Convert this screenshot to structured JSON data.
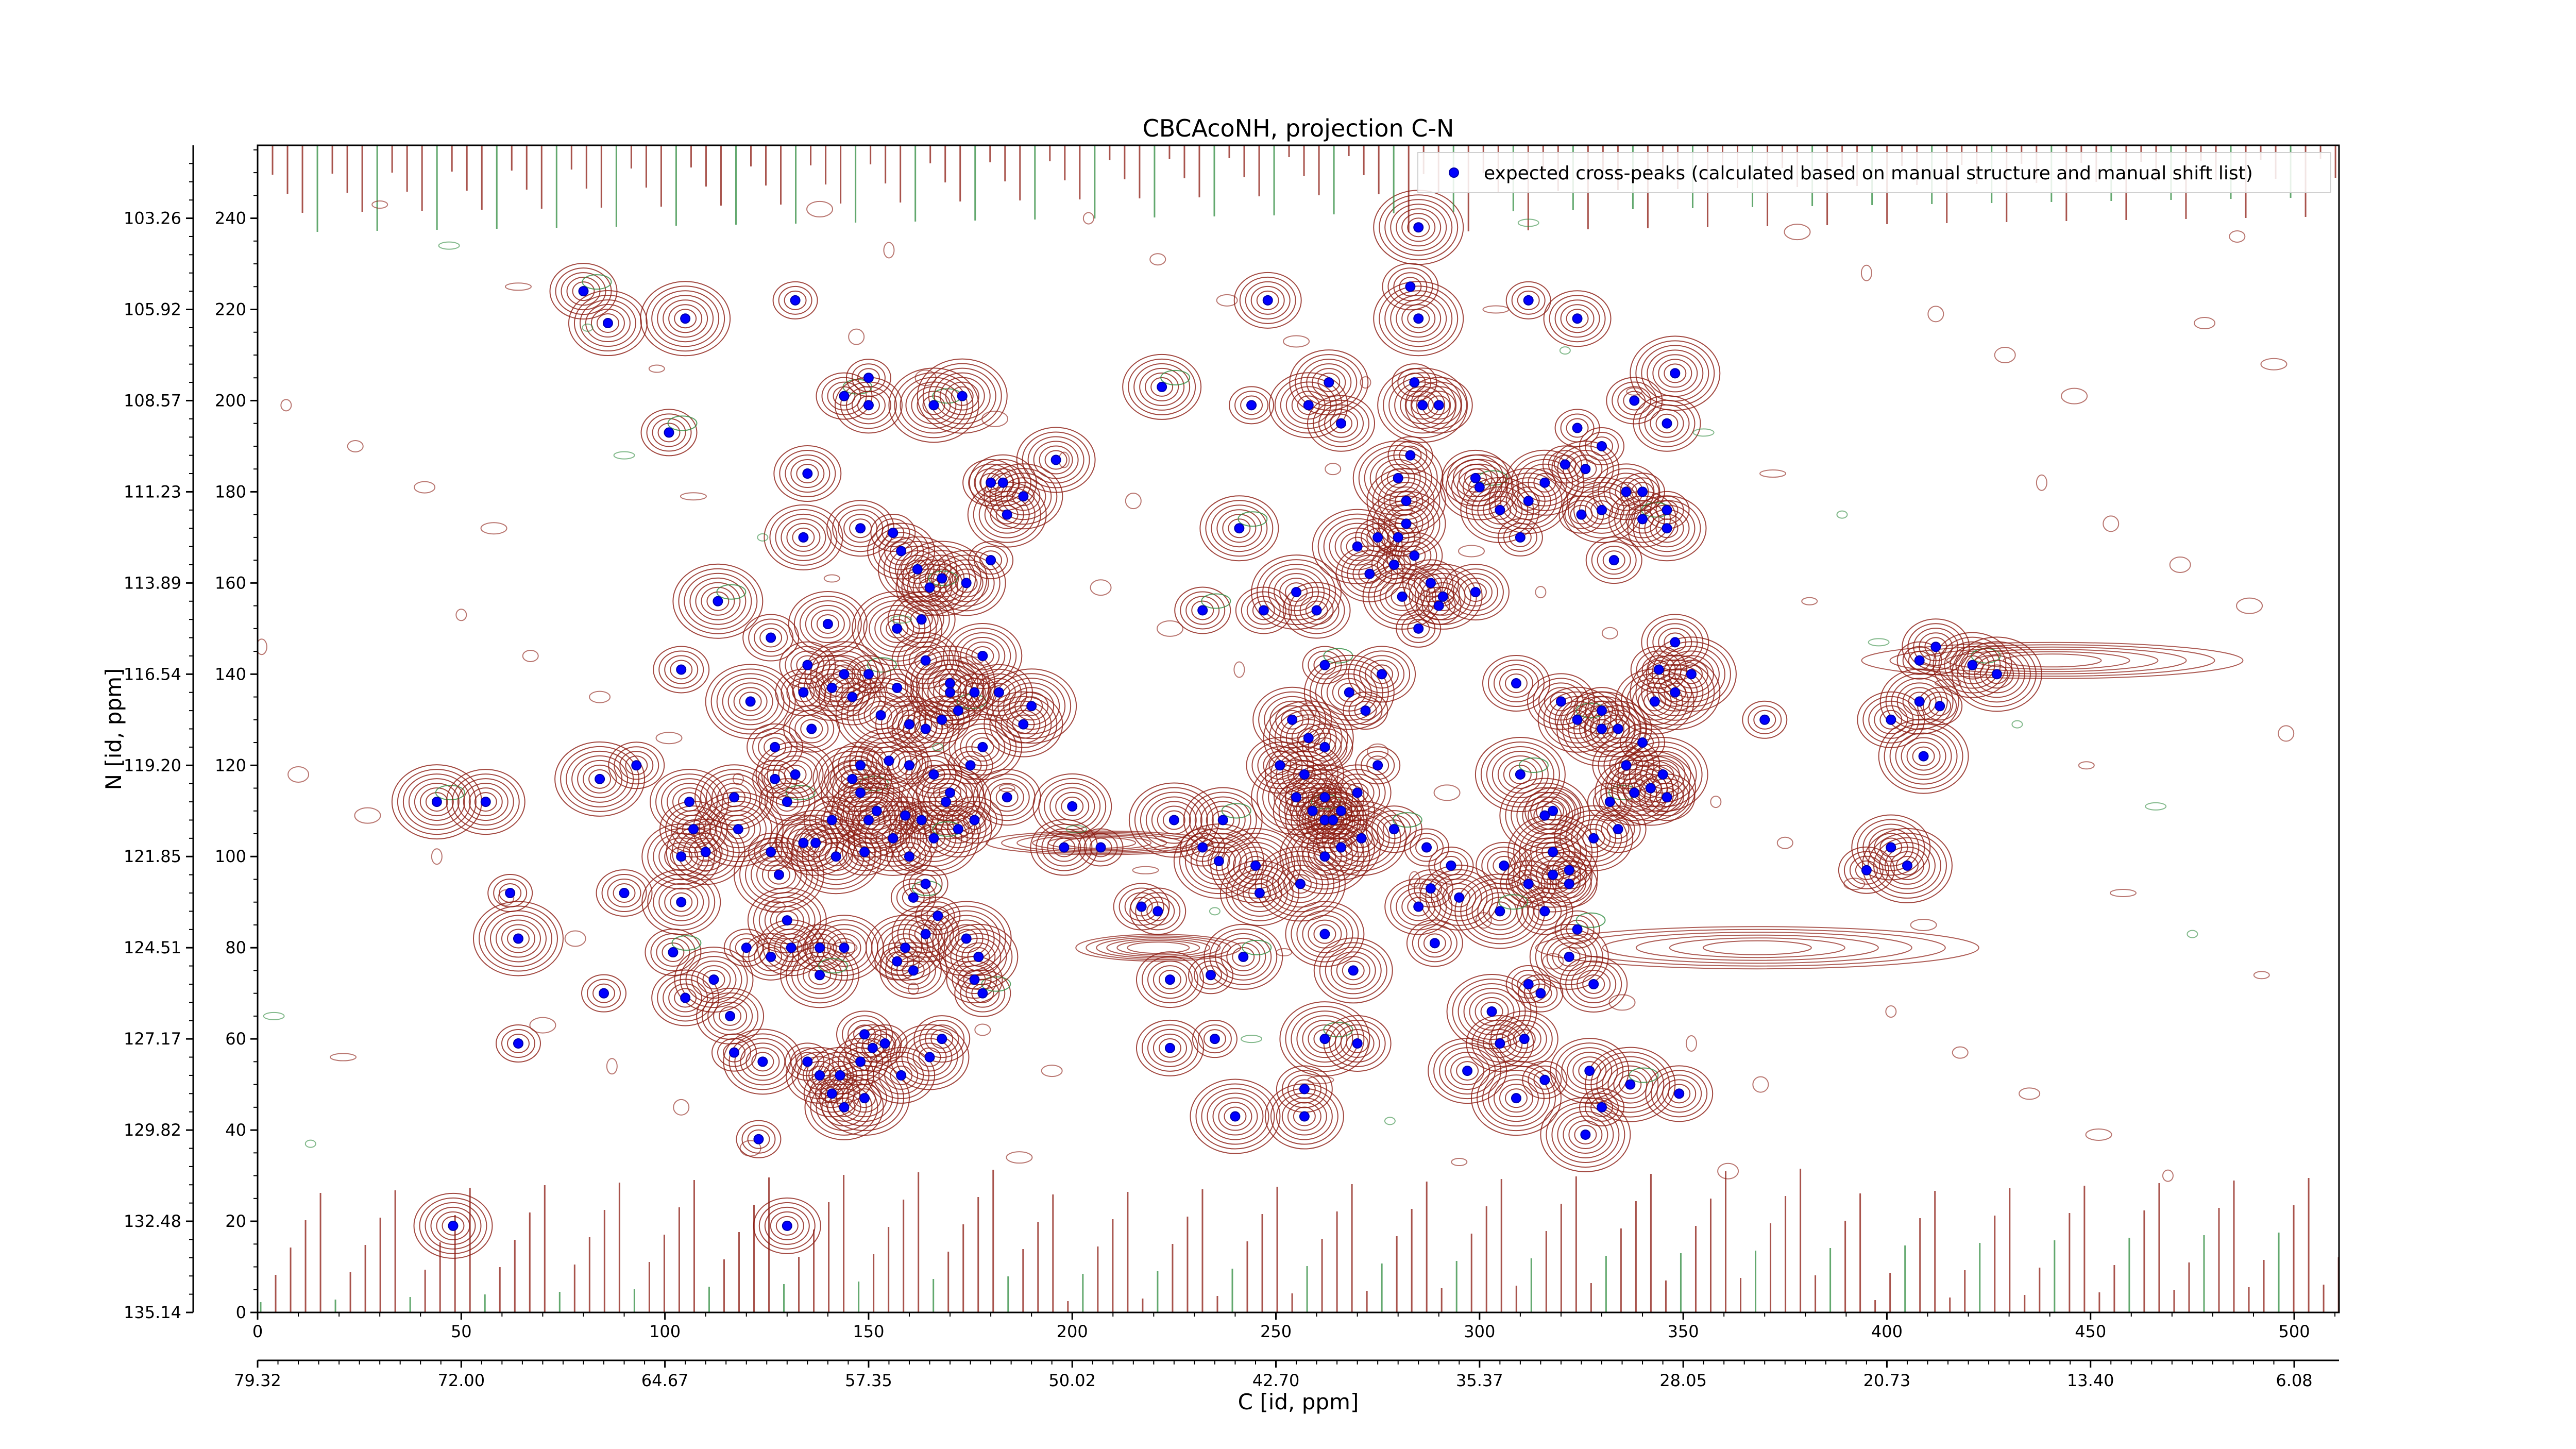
{
  "chart_data": {
    "type": "scatter",
    "title": "CBCAcoNH, projection C-N",
    "xlabel": "C [id, ppm]",
    "ylabel": "N [id, ppm]",
    "x_index_ticks": [
      "0",
      "50",
      "100",
      "150",
      "200",
      "250",
      "300",
      "350",
      "400",
      "450",
      "500"
    ],
    "x_ppm_ticks": [
      "79.32",
      "72.00",
      "64.67",
      "57.35",
      "50.02",
      "42.70",
      "35.37",
      "28.05",
      "20.73",
      "13.40",
      "6.08"
    ],
    "y_index_ticks": [
      "0",
      "20",
      "40",
      "60",
      "80",
      "100",
      "120",
      "140",
      "160",
      "180",
      "200",
      "220",
      "240"
    ],
    "y_ppm_ticks": [
      "135.14",
      "132.48",
      "129.82",
      "127.17",
      "124.51",
      "121.85",
      "119.20",
      "116.54",
      "113.89",
      "111.23",
      "108.57",
      "105.92",
      "103.26"
    ],
    "xlim": [
      0,
      511
    ],
    "ylim": [
      0,
      256
    ],
    "legend": {
      "label": "expected cross-peaks (calculated based on manual structure and manual shift list)",
      "placement": "upper right",
      "marker_color": "#0000ff"
    },
    "contour_colors": {
      "positive": "#8b1a10",
      "negative": "#2e8b3e"
    },
    "series": [
      {
        "name": "expected cross-peaks (calculated based on manual structure and manual shift list)",
        "color": "#0000ff",
        "points": [
          [
            80,
            224
          ],
          [
            86,
            217
          ],
          [
            105,
            218
          ],
          [
            132,
            222
          ],
          [
            248,
            222
          ],
          [
            312,
            222
          ],
          [
            324,
            218
          ],
          [
            283,
            225
          ],
          [
            285,
            218
          ],
          [
            44,
            112
          ],
          [
            56,
            112
          ],
          [
            62,
            92
          ],
          [
            64,
            82
          ],
          [
            64,
            59
          ],
          [
            85,
            70
          ],
          [
            90,
            92
          ],
          [
            93,
            120
          ],
          [
            84,
            117
          ],
          [
            101,
            193
          ],
          [
            104,
            141
          ],
          [
            107,
            106
          ],
          [
            104,
            100
          ],
          [
            104,
            90
          ],
          [
            106,
            112
          ],
          [
            110,
            101
          ],
          [
            118,
            106
          ],
          [
            117,
            113
          ],
          [
            102,
            79
          ],
          [
            105,
            69
          ],
          [
            112,
            73
          ],
          [
            120,
            80
          ],
          [
            126,
            78
          ],
          [
            116,
            65
          ],
          [
            117,
            57
          ],
          [
            124,
            55
          ],
          [
            123,
            38
          ],
          [
            113,
            156
          ],
          [
            126,
            148
          ],
          [
            121,
            134
          ],
          [
            135,
            142
          ],
          [
            140,
            151
          ],
          [
            134,
            136
          ],
          [
            136,
            128
          ],
          [
            127,
            124
          ],
          [
            127,
            117
          ],
          [
            130,
            112
          ],
          [
            132,
            118
          ],
          [
            134,
            103
          ],
          [
            126,
            101
          ],
          [
            128,
            96
          ],
          [
            130,
            86
          ],
          [
            131,
            80
          ],
          [
            138,
            80
          ],
          [
            144,
            80
          ],
          [
            138,
            74
          ],
          [
            135,
            55
          ],
          [
            138,
            52
          ],
          [
            141,
            48
          ],
          [
            144,
            45
          ],
          [
            149,
            47
          ],
          [
            149,
            61
          ],
          [
            151,
            58
          ],
          [
            154,
            59
          ],
          [
            144,
            201
          ],
          [
            150,
            205
          ],
          [
            150,
            199
          ],
          [
            135,
            184
          ],
          [
            134,
            170
          ],
          [
            148,
            172
          ],
          [
            156,
            171
          ],
          [
            158,
            167
          ],
          [
            162,
            163
          ],
          [
            165,
            159
          ],
          [
            168,
            161
          ],
          [
            157,
            150
          ],
          [
            163,
            152
          ],
          [
            174,
            160
          ],
          [
            180,
            165
          ],
          [
            178,
            144
          ],
          [
            170,
            138
          ],
          [
            164,
            143
          ],
          [
            150,
            140
          ],
          [
            146,
            135
          ],
          [
            141,
            137
          ],
          [
            144,
            140
          ],
          [
            153,
            131
          ],
          [
            157,
            137
          ],
          [
            160,
            129
          ],
          [
            164,
            128
          ],
          [
            168,
            130
          ],
          [
            172,
            132
          ],
          [
            176,
            136
          ],
          [
            182,
            136
          ],
          [
            188,
            129
          ],
          [
            160,
            120
          ],
          [
            166,
            118
          ],
          [
            170,
            114
          ],
          [
            175,
            120
          ],
          [
            178,
            124
          ],
          [
            148,
            114
          ],
          [
            150,
            108
          ],
          [
            152,
            110
          ],
          [
            156,
            104
          ],
          [
            159,
            109
          ],
          [
            163,
            108
          ],
          [
            169,
            112
          ],
          [
            172,
            106
          ],
          [
            176,
            108
          ],
          [
            166,
            104
          ],
          [
            160,
            100
          ],
          [
            149,
            101
          ],
          [
            142,
            100
          ],
          [
            137,
            103
          ],
          [
            141,
            108
          ],
          [
            146,
            117
          ],
          [
            148,
            120
          ],
          [
            155,
            121
          ],
          [
            161,
            91
          ],
          [
            164,
            94
          ],
          [
            167,
            87
          ],
          [
            164,
            83
          ],
          [
            159,
            80
          ],
          [
            157,
            77
          ],
          [
            161,
            75
          ],
          [
            174,
            82
          ],
          [
            176,
            73
          ],
          [
            178,
            70
          ],
          [
            177,
            78
          ],
          [
            168,
            60
          ],
          [
            165,
            56
          ],
          [
            158,
            52
          ],
          [
            148,
            55
          ],
          [
            143,
            52
          ],
          [
            130,
            19
          ],
          [
            48,
            19
          ],
          [
            166,
            199
          ],
          [
            173,
            201
          ],
          [
            183,
            182
          ],
          [
            184,
            175
          ],
          [
            196,
            187
          ],
          [
            180,
            182
          ],
          [
            188,
            179
          ],
          [
            170,
            136
          ],
          [
            190,
            133
          ],
          [
            222,
            203
          ],
          [
            244,
            199
          ],
          [
            258,
            199
          ],
          [
            266,
            195
          ],
          [
            286,
            199
          ],
          [
            290,
            199
          ],
          [
            283,
            188
          ],
          [
            280,
            183
          ],
          [
            282,
            178
          ],
          [
            241,
            172
          ],
          [
            270,
            168
          ],
          [
            275,
            170
          ],
          [
            280,
            170
          ],
          [
            282,
            173
          ],
          [
            284,
            166
          ],
          [
            279,
            164
          ],
          [
            288,
            160
          ],
          [
            291,
            157
          ],
          [
            232,
            154
          ],
          [
            247,
            154
          ],
          [
            255,
            158
          ],
          [
            260,
            154
          ],
          [
            273,
            162
          ],
          [
            281,
            157
          ],
          [
            290,
            155
          ],
          [
            299,
            158
          ],
          [
            285,
            150
          ],
          [
            262,
            142
          ],
          [
            268,
            136
          ],
          [
            272,
            132
          ],
          [
            276,
            140
          ],
          [
            254,
            130
          ],
          [
            258,
            126
          ],
          [
            262,
            124
          ],
          [
            257,
            118
          ],
          [
            255,
            113
          ],
          [
            259,
            110
          ],
          [
            262,
            108
          ],
          [
            251,
            120
          ],
          [
            262,
            113
          ],
          [
            264,
            108
          ],
          [
            266,
            110
          ],
          [
            262,
            100
          ],
          [
            270,
            114
          ],
          [
            275,
            120
          ],
          [
            237,
            108
          ],
          [
            225,
            108
          ],
          [
            232,
            102
          ],
          [
            236,
            99
          ],
          [
            245,
            98
          ],
          [
            246,
            92
          ],
          [
            256,
            94
          ],
          [
            266,
            102
          ],
          [
            271,
            104
          ],
          [
            279,
            106
          ],
          [
            287,
            102
          ],
          [
            293,
            98
          ],
          [
            288,
            93
          ],
          [
            295,
            91
          ],
          [
            285,
            89
          ],
          [
            289,
            81
          ],
          [
            269,
            75
          ],
          [
            262,
            83
          ],
          [
            242,
            78
          ],
          [
            234,
            74
          ],
          [
            224,
            73
          ],
          [
            221,
            88
          ],
          [
            198,
            102
          ],
          [
            207,
            102
          ],
          [
            184,
            113
          ],
          [
            200,
            111
          ],
          [
            217,
            89
          ],
          [
            262,
            60
          ],
          [
            235,
            60
          ],
          [
            224,
            58
          ],
          [
            270,
            59
          ],
          [
            257,
            49
          ],
          [
            257,
            43
          ],
          [
            240,
            43
          ],
          [
            315,
            70
          ],
          [
            322,
            78
          ],
          [
            324,
            84
          ],
          [
            328,
            72
          ],
          [
            312,
            72
          ],
          [
            316,
            88
          ],
          [
            322,
            94
          ],
          [
            318,
            96
          ],
          [
            328,
            104
          ],
          [
            334,
            106
          ],
          [
            318,
            110
          ],
          [
            332,
            112
          ],
          [
            338,
            114
          ],
          [
            342,
            115
          ],
          [
            346,
            113
          ],
          [
            345,
            118
          ],
          [
            336,
            120
          ],
          [
            340,
            125
          ],
          [
            334,
            128
          ],
          [
            330,
            128
          ],
          [
            324,
            130
          ],
          [
            330,
            132
          ],
          [
            343,
            134
          ],
          [
            348,
            136
          ],
          [
            352,
            140
          ],
          [
            348,
            147
          ],
          [
            344,
            141
          ],
          [
            320,
            134
          ],
          [
            309,
            138
          ],
          [
            310,
            118
          ],
          [
            316,
            109
          ],
          [
            333,
            165
          ],
          [
            336,
            180
          ],
          [
            316,
            182
          ],
          [
            325,
            175
          ],
          [
            330,
            176
          ],
          [
            340,
            180
          ],
          [
            346,
            176
          ],
          [
            340,
            174
          ],
          [
            346,
            172
          ],
          [
            321,
            186
          ],
          [
            326,
            185
          ],
          [
            324,
            194
          ],
          [
            330,
            190
          ],
          [
            346,
            195
          ],
          [
            338,
            200
          ],
          [
            348,
            206
          ],
          [
            300,
            181
          ],
          [
            305,
            176
          ],
          [
            310,
            170
          ],
          [
            312,
            178
          ],
          [
            299,
            183
          ],
          [
            318,
            101
          ],
          [
            322,
            97
          ],
          [
            306,
            98
          ],
          [
            312,
            94
          ],
          [
            305,
            88
          ],
          [
            303,
            66
          ],
          [
            311,
            60
          ],
          [
            305,
            59
          ],
          [
            297,
            53
          ],
          [
            309,
            47
          ],
          [
            316,
            51
          ],
          [
            327,
            53
          ],
          [
            330,
            45
          ],
          [
            337,
            50
          ],
          [
            349,
            48
          ],
          [
            326,
            39
          ],
          [
            370,
            130
          ],
          [
            401,
            130
          ],
          [
            408,
            134
          ],
          [
            413,
            133
          ],
          [
            408,
            143
          ],
          [
            412,
            146
          ],
          [
            421,
            142
          ],
          [
            427,
            140
          ],
          [
            409,
            122
          ],
          [
            401,
            102
          ],
          [
            405,
            98
          ],
          [
            395,
            97
          ],
          [
            285,
            238
          ],
          [
            263,
            204
          ],
          [
            284,
            204
          ]
        ]
      }
    ]
  }
}
